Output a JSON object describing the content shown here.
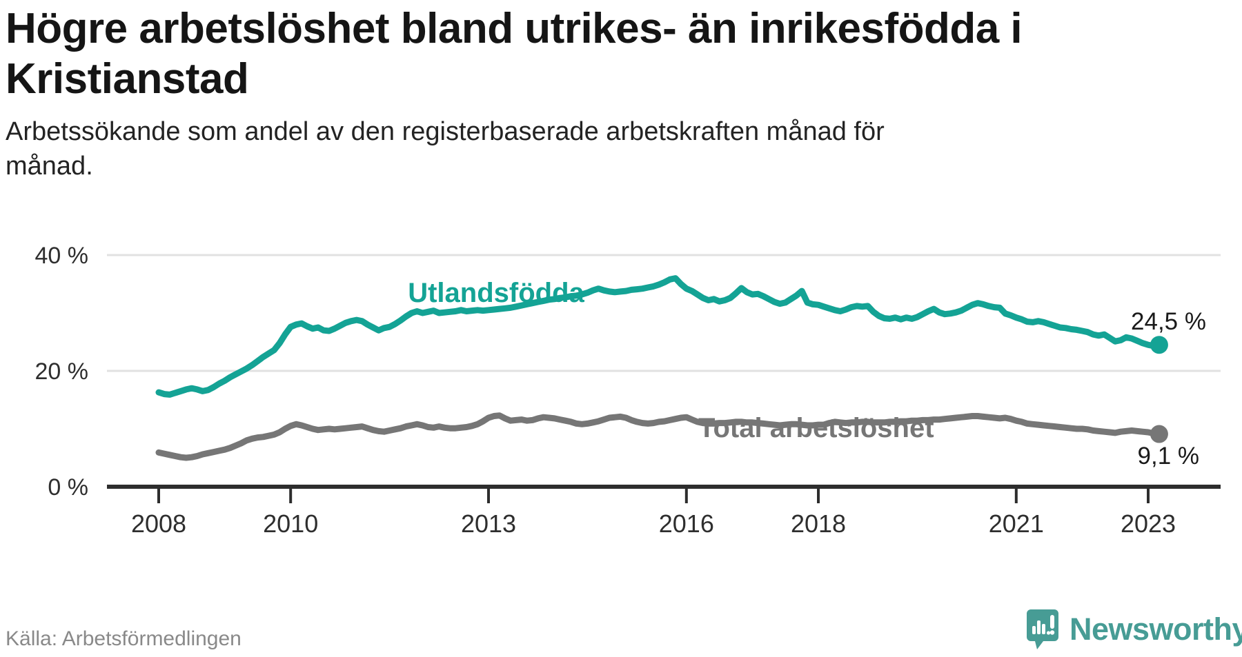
{
  "header": {
    "title": "Högre arbetslöshet bland utrikes- än inrikesfödda i Kristianstad",
    "title_lines": [
      "Högre arbetslöshet bland utrikes- än inrikesfödda i",
      "Kristianstad"
    ],
    "subtitle": "Arbetssökande som andel av den registerbaserade arbetskraften månad för månad.",
    "subtitle_lines": [
      "Arbetssökande som andel av den registerbaserade arbetskraften månad för",
      "månad."
    ]
  },
  "footer": {
    "source": "Källa: Arbetsförmedlingen",
    "brand_name": "Newsworthy"
  },
  "colors": {
    "series_foreign": "#14a395",
    "series_total": "#767676",
    "grid": "#e1e1e1",
    "axis": "#2d2d2d",
    "axis_text": "#2e2e2e",
    "value_label": "#1a1a1a",
    "logo_teal": "#479c95",
    "title_text": "#151515",
    "source_text": "#898989"
  },
  "chart_data": {
    "type": "line",
    "title": "Högre arbetslöshet bland utrikes- än inrikesfödda i Kristianstad",
    "subtitle": "Arbetssökande som andel av den registerbaserade arbetskraften månad för månad.",
    "unit": "%",
    "x_start": "2008-01",
    "x_end": "2023-03",
    "x_frequency": "monthly",
    "x_tick_years": [
      "2008",
      "2010",
      "2013",
      "2016",
      "2018",
      "2021",
      "2023"
    ],
    "y_ticks": [
      {
        "value": 0,
        "label": "0 %"
      },
      {
        "value": 20,
        "label": "20 %"
      },
      {
        "value": 40,
        "label": "40 %"
      }
    ],
    "ylim": [
      0,
      43
    ],
    "grid": "horizontal-only",
    "legend_position": "inline-labels-on-lines",
    "series": [
      {
        "name": "Utlandsfödda",
        "color": "#14a395",
        "end_value": 24.5,
        "end_label": "24,5 %",
        "values": [
          16.3,
          16.0,
          15.9,
          16.2,
          16.5,
          16.8,
          17.0,
          16.8,
          16.5,
          16.7,
          17.2,
          17.8,
          18.3,
          18.9,
          19.4,
          19.9,
          20.4,
          21.0,
          21.7,
          22.4,
          23.0,
          23.6,
          24.8,
          26.3,
          27.6,
          28.0,
          28.2,
          27.7,
          27.3,
          27.5,
          27.0,
          26.9,
          27.3,
          27.8,
          28.3,
          28.6,
          28.8,
          28.6,
          28.0,
          27.5,
          27.0,
          27.4,
          27.6,
          28.1,
          28.7,
          29.4,
          30.0,
          30.3,
          30.0,
          30.2,
          30.4,
          30.0,
          30.1,
          30.2,
          30.3,
          30.5,
          30.3,
          30.4,
          30.5,
          30.4,
          30.5,
          30.6,
          30.7,
          30.8,
          30.9,
          31.1,
          31.3,
          31.5,
          31.7,
          31.9,
          32.1,
          32.3,
          32.4,
          32.6,
          32.7,
          32.9,
          33.0,
          33.2,
          33.5,
          33.9,
          34.2,
          33.9,
          33.7,
          33.6,
          33.7,
          33.8,
          34.0,
          34.1,
          34.2,
          34.4,
          34.6,
          34.9,
          35.3,
          35.8,
          36.0,
          35.0,
          34.2,
          33.8,
          33.2,
          32.6,
          32.2,
          32.4,
          32.0,
          32.2,
          32.6,
          33.4,
          34.3,
          33.6,
          33.2,
          33.3,
          32.9,
          32.4,
          31.9,
          31.6,
          31.8,
          32.4,
          33.0,
          33.8,
          31.8,
          31.5,
          31.4,
          31.1,
          30.8,
          30.5,
          30.3,
          30.6,
          31.0,
          31.2,
          31.1,
          31.2,
          30.2,
          29.5,
          29.1,
          29.0,
          29.2,
          28.9,
          29.2,
          29.0,
          29.3,
          29.8,
          30.3,
          30.7,
          30.1,
          29.8,
          29.9,
          30.1,
          30.4,
          30.9,
          31.4,
          31.7,
          31.5,
          31.2,
          31.0,
          30.9,
          29.9,
          29.6,
          29.2,
          28.9,
          28.5,
          28.4,
          28.6,
          28.4,
          28.1,
          27.8,
          27.5,
          27.4,
          27.2,
          27.1,
          26.9,
          26.7,
          26.3,
          26.1,
          26.3,
          25.7,
          25.1,
          25.3,
          25.8,
          25.6,
          25.2,
          24.8,
          24.5,
          24.3,
          24.5
        ]
      },
      {
        "name": "Total arbetslöshet",
        "color": "#767676",
        "end_value": 9.1,
        "end_label": "9,1 %",
        "values": [
          5.9,
          5.7,
          5.5,
          5.3,
          5.1,
          5.0,
          5.1,
          5.3,
          5.6,
          5.8,
          6.0,
          6.2,
          6.4,
          6.7,
          7.1,
          7.5,
          8.0,
          8.3,
          8.5,
          8.6,
          8.8,
          9.0,
          9.4,
          10.0,
          10.5,
          10.8,
          10.6,
          10.3,
          10.0,
          9.8,
          9.9,
          10.0,
          9.9,
          10.0,
          10.1,
          10.2,
          10.3,
          10.4,
          10.1,
          9.8,
          9.6,
          9.5,
          9.7,
          9.9,
          10.1,
          10.4,
          10.6,
          10.8,
          10.6,
          10.3,
          10.2,
          10.4,
          10.2,
          10.1,
          10.1,
          10.2,
          10.3,
          10.5,
          10.8,
          11.3,
          11.9,
          12.2,
          12.3,
          11.8,
          11.4,
          11.5,
          11.6,
          11.4,
          11.5,
          11.8,
          12.0,
          11.9,
          11.8,
          11.6,
          11.4,
          11.2,
          10.9,
          10.8,
          10.9,
          11.1,
          11.3,
          11.6,
          11.9,
          12.0,
          12.1,
          11.9,
          11.5,
          11.2,
          11.0,
          10.9,
          11.0,
          11.2,
          11.3,
          11.5,
          11.7,
          11.9,
          12.0,
          11.6,
          11.2,
          11.0,
          10.9,
          10.9,
          11.0,
          11.0,
          11.1,
          11.2,
          11.2,
          11.1,
          11.1,
          11.0,
          10.9,
          10.8,
          10.7,
          10.6,
          10.7,
          10.8,
          10.8,
          10.7,
          10.6,
          10.6,
          10.7,
          10.7,
          11.0,
          11.2,
          11.1,
          11.0,
          11.1,
          11.1,
          11.2,
          11.2,
          11.1,
          11.1,
          11.1,
          11.2,
          11.2,
          11.3,
          11.3,
          11.4,
          11.4,
          11.5,
          11.5,
          11.6,
          11.6,
          11.7,
          11.8,
          11.9,
          12.0,
          12.1,
          12.2,
          12.2,
          12.1,
          12.0,
          11.9,
          11.8,
          11.9,
          11.7,
          11.4,
          11.2,
          10.9,
          10.8,
          10.7,
          10.6,
          10.5,
          10.4,
          10.3,
          10.2,
          10.1,
          10.0,
          10.0,
          9.9,
          9.7,
          9.6,
          9.5,
          9.4,
          9.3,
          9.5,
          9.6,
          9.7,
          9.6,
          9.5,
          9.4,
          9.2,
          9.1
        ]
      }
    ]
  }
}
